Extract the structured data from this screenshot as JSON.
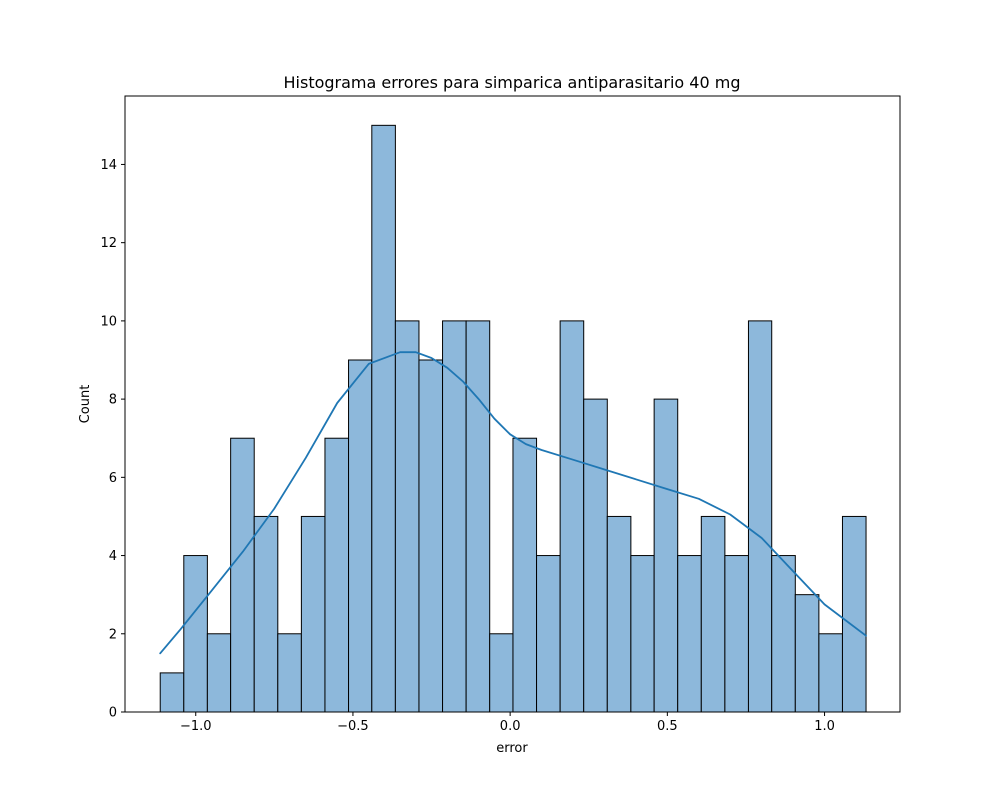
{
  "chart_data": {
    "type": "bar",
    "subtype": "histogram_with_kde",
    "title": "Histograma errores para simparica antiparasitario 40 mg",
    "xlabel": "error",
    "ylabel": "Count",
    "xlim": [
      -1.225,
      1.24
    ],
    "ylim": [
      0,
      15.75
    ],
    "x_ticks": [
      -1.0,
      -0.5,
      0.0,
      0.5,
      1.0
    ],
    "x_tick_labels": [
      "−1.0",
      "−0.5",
      "0.0",
      "0.5",
      "1.0"
    ],
    "y_ticks": [
      0,
      2,
      4,
      6,
      8,
      10,
      12,
      14
    ],
    "y_tick_labels": [
      "0",
      "2",
      "4",
      "6",
      "8",
      "10",
      "12",
      "14"
    ],
    "grid": false,
    "bar_color": "#8db8db",
    "bar_edge_color": "#000000",
    "line_color": "#1f77b4",
    "bin_edges": [
      -1.113,
      -1.038,
      -0.963,
      -0.889,
      -0.814,
      -0.739,
      -0.664,
      -0.589,
      -0.514,
      -0.44,
      -0.365,
      -0.29,
      -0.215,
      -0.14,
      -0.065,
      0.009,
      0.084,
      0.159,
      0.234,
      0.309,
      0.384,
      0.458,
      0.533,
      0.608,
      0.683,
      0.758,
      0.832,
      0.907,
      0.982,
      1.057,
      1.132
    ],
    "counts": [
      1,
      4,
      2,
      7,
      5,
      2,
      5,
      7,
      9,
      15,
      10,
      9,
      10,
      10,
      2,
      7,
      4,
      10,
      8,
      5,
      4,
      8,
      4,
      5,
      4,
      10,
      4,
      3,
      2,
      5
    ],
    "kde": {
      "x": [
        -1.113,
        -1.05,
        -0.95,
        -0.85,
        -0.75,
        -0.65,
        -0.55,
        -0.45,
        -0.35,
        -0.3,
        -0.25,
        -0.2,
        -0.15,
        -0.1,
        -0.05,
        0.0,
        0.05,
        0.1,
        0.2,
        0.3,
        0.4,
        0.5,
        0.6,
        0.7,
        0.8,
        0.9,
        1.0,
        1.132
      ],
      "y": [
        1.5,
        2.1,
        3.1,
        4.1,
        5.2,
        6.5,
        7.9,
        8.9,
        9.2,
        9.2,
        9.05,
        8.8,
        8.45,
        8.0,
        7.5,
        7.1,
        6.85,
        6.7,
        6.45,
        6.2,
        5.95,
        5.7,
        5.45,
        5.05,
        4.45,
        3.6,
        2.75,
        1.95
      ]
    }
  }
}
